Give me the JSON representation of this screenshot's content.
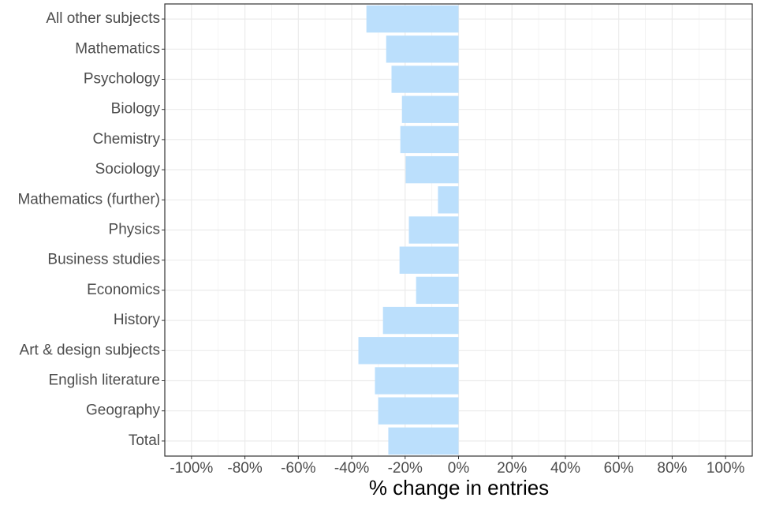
{
  "chart_data": {
    "type": "bar",
    "orientation": "horizontal",
    "x_label": "% change in entries",
    "categories": [
      "All other subjects",
      "Mathematics",
      "Psychology",
      "Biology",
      "Chemistry",
      "Sociology",
      "Mathematics (further)",
      "Physics",
      "Business studies",
      "Economics",
      "History",
      "Art & design subjects",
      "English literature",
      "Geography",
      "Total"
    ],
    "values": [
      -34.5,
      -27.1,
      -25.1,
      -21.2,
      -21.8,
      -19.8,
      -7.7,
      -18.6,
      -22.1,
      -15.9,
      -28.3,
      -37.5,
      -31.3,
      -30.1,
      -26.3
    ],
    "color": "#bbdffc",
    "xlim": [
      -110,
      110
    ],
    "xticks": [
      {
        "value": -100,
        "label": "-100%"
      },
      {
        "value": -80,
        "label": "-80%"
      },
      {
        "value": -60,
        "label": "-60%"
      },
      {
        "value": -40,
        "label": "-40%"
      },
      {
        "value": -20,
        "label": "-20%"
      },
      {
        "value": 0,
        "label": "0%"
      },
      {
        "value": 20,
        "label": "20%"
      },
      {
        "value": 40,
        "label": "40%"
      },
      {
        "value": 60,
        "label": "60%"
      },
      {
        "value": 80,
        "label": "80%"
      },
      {
        "value": 100,
        "label": "100%"
      }
    ],
    "grid": true
  }
}
